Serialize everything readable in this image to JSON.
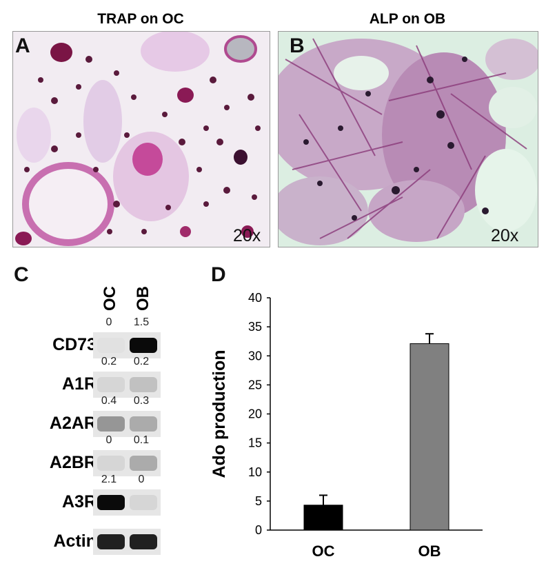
{
  "panels": {
    "a": {
      "letter": "A",
      "title": "TRAP on OC",
      "magnification": "20x"
    },
    "b": {
      "letter": "B",
      "title": "ALP on OB",
      "magnification": "20x"
    },
    "c": {
      "letter": "C",
      "lanes": [
        "OC",
        "OB"
      ]
    },
    "d": {
      "letter": "D"
    }
  },
  "western_blot": {
    "rows": [
      {
        "label": "CD73",
        "quant": [
          "0",
          "1.5"
        ],
        "intensity": [
          0.0,
          1.0
        ]
      },
      {
        "label": "A1R",
        "quant": [
          "0.2",
          "0.2"
        ],
        "intensity": [
          0.05,
          0.15
        ]
      },
      {
        "label": "A2AR",
        "quant": [
          "0.4",
          "0.3"
        ],
        "intensity": [
          0.35,
          0.25
        ]
      },
      {
        "label": "A2BR",
        "quant": [
          "0",
          "0.1"
        ],
        "intensity": [
          0.05,
          0.25
        ]
      },
      {
        "label": "A3R",
        "quant": [
          "2.1",
          "0"
        ],
        "intensity": [
          1.0,
          0.05
        ]
      },
      {
        "label": "Actin",
        "quant": [],
        "intensity": [
          0.9,
          0.9
        ]
      }
    ]
  },
  "chart_data": {
    "type": "bar",
    "categories": [
      "OC",
      "OB"
    ],
    "values": [
      4.3,
      32.1
    ],
    "errors": [
      1.7,
      1.7
    ],
    "colors": [
      "#000000",
      "#808080"
    ],
    "ylabel": "Ado production",
    "xlabel": "",
    "title": "",
    "ylim": [
      0,
      40
    ],
    "yticks": [
      "0",
      "5",
      "10",
      "15",
      "20",
      "25",
      "30",
      "35",
      "40"
    ],
    "grid": false
  }
}
